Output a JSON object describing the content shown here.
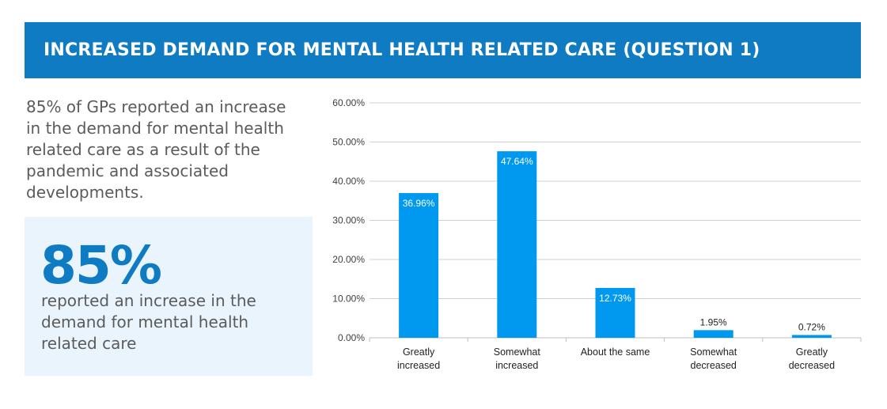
{
  "header": {
    "title": "INCREASED DEMAND FOR MENTAL HEALTH RELATED CARE (QUESTION 1)"
  },
  "intro_text": "85% of GPs reported an increase in the demand for mental health related care as a result of the pandemic and associated developments.",
  "callout": {
    "stat": "85%",
    "caption": "reported an increase in the demand for mental health related care"
  },
  "colors": {
    "banner": "#0f7bc2",
    "bar": "#0099ef",
    "callout_bg": "#eaf4fd"
  },
  "chart_data": {
    "type": "bar",
    "categories": [
      "Greatly increased",
      "Somewhat increased",
      "About the same",
      "Somewhat decreased",
      "Greatly decreased"
    ],
    "values": [
      36.96,
      47.64,
      12.73,
      1.95,
      0.72
    ],
    "value_labels": [
      "36.96%",
      "47.64%",
      "12.73%",
      "1.95%",
      "0.72%"
    ],
    "yticks": [
      "0.00%",
      "10.00%",
      "20.00%",
      "30.00%",
      "40.00%",
      "50.00%",
      "60.00%"
    ],
    "ylim": [
      0,
      60
    ],
    "grid": true,
    "title": "",
    "xlabel": "",
    "ylabel": ""
  }
}
